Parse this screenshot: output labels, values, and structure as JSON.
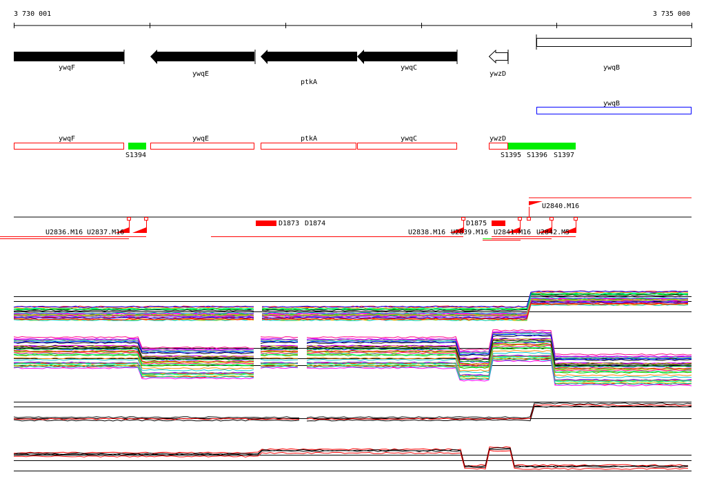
{
  "ruler": {
    "start_label": "3 730 001",
    "end_label": "3 735 000"
  },
  "genes": [
    {
      "name": "ywqF",
      "strand": "+",
      "style": "filled"
    },
    {
      "name": "ywqE",
      "strand": "-",
      "style": "filled"
    },
    {
      "name": "ptkA",
      "strand": "-",
      "style": "filled"
    },
    {
      "name": "ywqC",
      "strand": "-",
      "style": "filled"
    },
    {
      "name": "ywzD",
      "strand": "-",
      "style": "outline"
    },
    {
      "name": "ywqB",
      "strand": "+",
      "style": "outline"
    }
  ],
  "blue_track": {
    "label": "ywqB",
    "color": "#0000ff"
  },
  "segment_track": {
    "genes": [
      "ywqF",
      "ywqE",
      "ptkA",
      "ywqC",
      "ywzD"
    ],
    "segments": [
      "S1394",
      "S1395",
      "S1396",
      "S1397"
    ],
    "gene_color": "#ff0000",
    "segment_color": "#00ee00"
  },
  "transcripts": {
    "labels": [
      "U2836.M16",
      "U2837.M16",
      "D1873",
      "D1874",
      "U2838.M16",
      "U2839.M16",
      "D1875",
      "U2841.M16",
      "U2842.M5",
      "U2840.M16"
    ],
    "color": "#ff0000"
  },
  "colors": {
    "line": "#000000",
    "red": "#ff0000",
    "green": "#00ee00",
    "blue": "#0000ff"
  }
}
